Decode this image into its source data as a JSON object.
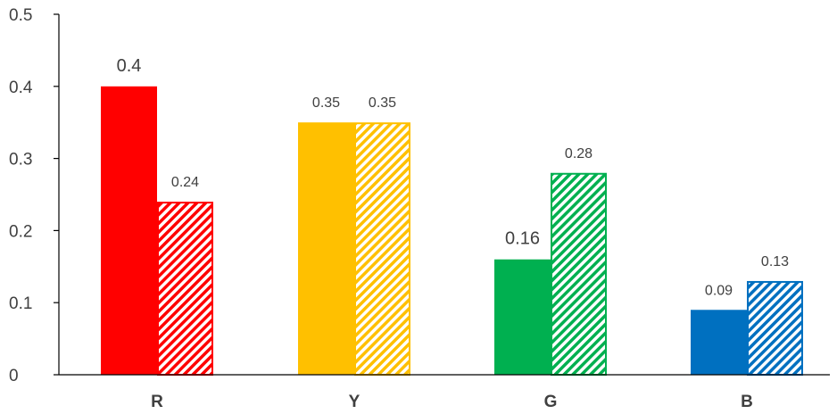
{
  "chart_data": {
    "type": "bar",
    "title": "",
    "xlabel": "",
    "ylabel": "",
    "categories": [
      "R",
      "Y",
      "G",
      "B"
    ],
    "ylim": [
      0,
      0.5
    ],
    "yticks": [
      0,
      0.1,
      0.2,
      0.3,
      0.4,
      0.5
    ],
    "ytick_labels": [
      "0",
      "0.1",
      "0.2",
      "0.3",
      "0.4",
      "0.5"
    ],
    "grid": false,
    "legend": "none",
    "colors": [
      "#ff0000",
      "#ffc000",
      "#00b050",
      "#0070c0"
    ],
    "series": [
      {
        "pattern": "solid",
        "values": [
          0.4,
          0.35,
          0.16,
          0.09
        ],
        "labels": [
          "0.4",
          "0.35",
          "0.16",
          "0.09"
        ]
      },
      {
        "pattern": "diagonal-hatch",
        "values": [
          0.24,
          0.35,
          0.28,
          0.13
        ],
        "labels": [
          "0.24",
          "0.35",
          "0.28",
          "0.13"
        ]
      }
    ]
  }
}
